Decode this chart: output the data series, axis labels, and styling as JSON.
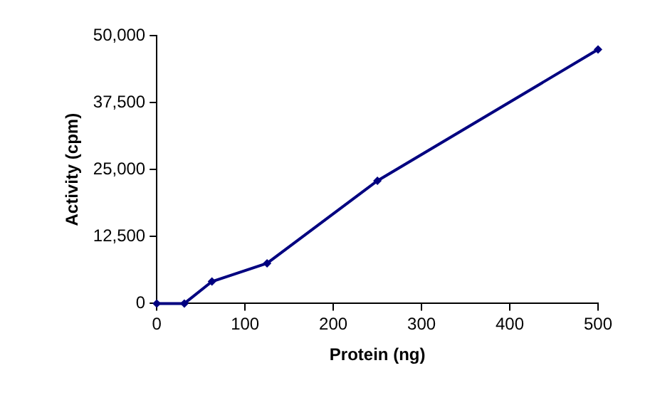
{
  "chart_data": {
    "type": "line",
    "xlabel": "Protein (ng)",
    "ylabel": "Activity (cpm)",
    "x": [
      0,
      31.25,
      62.5,
      125,
      250,
      500
    ],
    "series": [
      {
        "color": "#000080",
        "values": [
          0,
          0,
          4100,
          7500,
          22900,
          47400
        ]
      }
    ],
    "xlim": [
      0,
      500
    ],
    "xticks": [
      0,
      100,
      200,
      300,
      400,
      500
    ],
    "ylim": [
      0,
      50000
    ],
    "yticks": [
      {
        "value": 0,
        "label": "0"
      },
      {
        "value": 12500,
        "label": "12,500"
      },
      {
        "value": 25000,
        "label": "25,000"
      },
      {
        "value": 37500,
        "label": "37,500"
      },
      {
        "value": 50000,
        "label": "50,000"
      }
    ],
    "grid": false,
    "legend": false,
    "marker": "diamond",
    "line_style": "solid"
  }
}
